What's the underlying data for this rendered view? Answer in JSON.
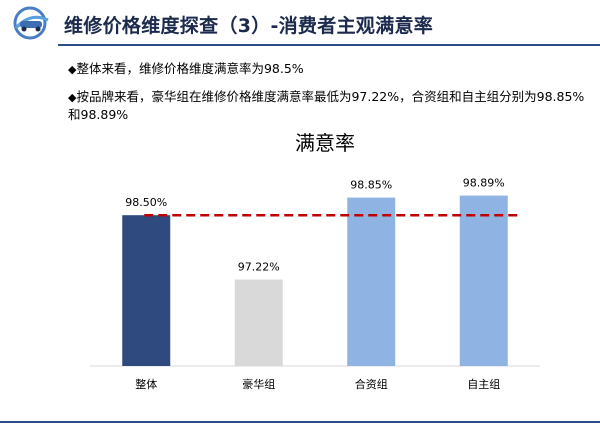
{
  "header": {
    "title": "维修价格维度探查（3）-消费者主观满意率"
  },
  "bullets": [
    {
      "mark": "◆",
      "text": "整体来看，维修价格维度满意率为98.5%"
    },
    {
      "mark": "◆",
      "text": "按品牌来看，豪华组在维修价格维度满意率最低为97.22%，合资组和自主组分别为98.85%和98.89%"
    }
  ],
  "chart_data": {
    "type": "bar",
    "title": "满意率",
    "categories": [
      "整体",
      "豪华组",
      "合资组",
      "自主组"
    ],
    "values": [
      98.5,
      97.22,
      98.85,
      98.89
    ],
    "value_labels": [
      "98.50%",
      "97.22%",
      "98.85%",
      "98.89%"
    ],
    "colors": [
      "#2f4a7f",
      "#d9d9d9",
      "#8fb3e2",
      "#8fb3e2"
    ],
    "reference_line": {
      "value": 98.5,
      "style": "dashed",
      "color": "#c00000"
    },
    "ylim": [
      95.5,
      99.2
    ],
    "grid": false,
    "legend": "none"
  }
}
